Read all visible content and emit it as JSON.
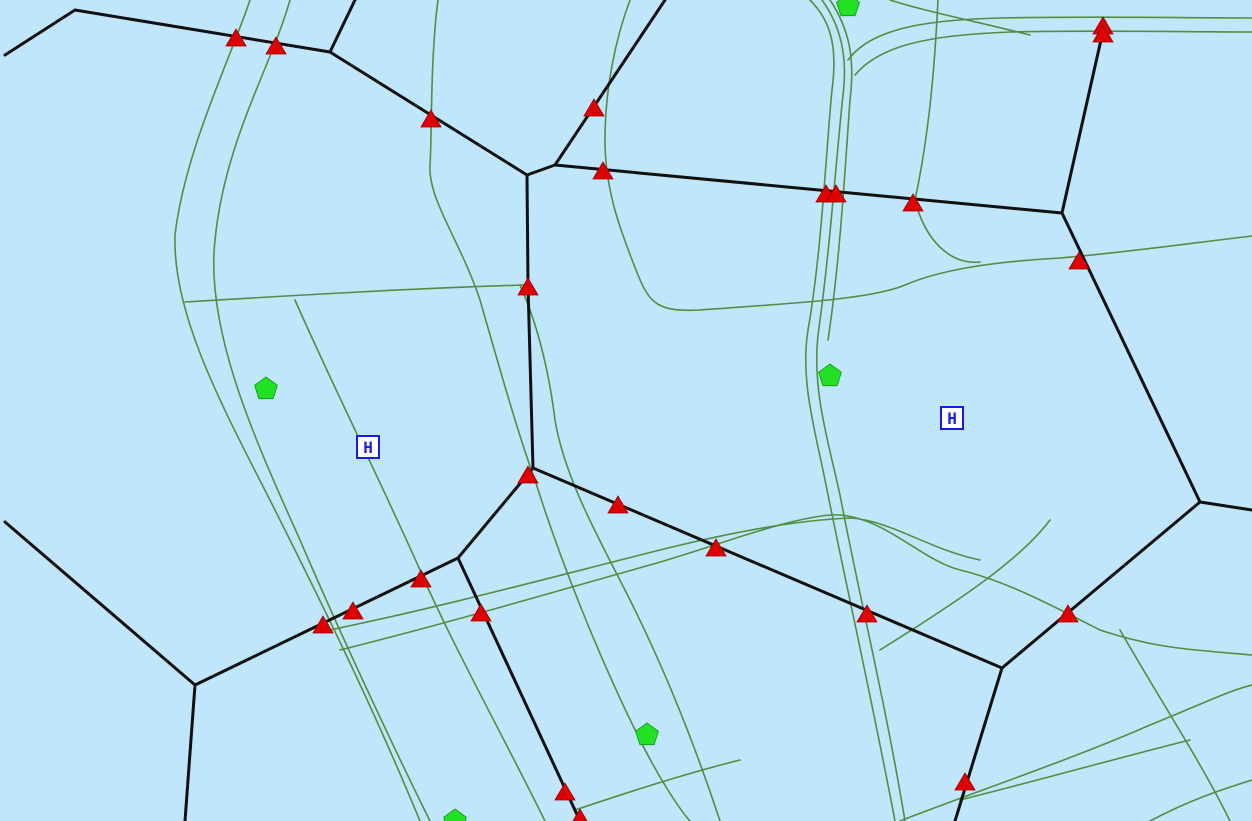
{
  "map": {
    "colors": {
      "background": "#bfe6fb",
      "road": "#4f8f3f",
      "boundary": "#111111",
      "intersection_marker": "#e00000",
      "facility_marker": "#22e122",
      "hospital_marker": "#1a1aff"
    },
    "icons": {
      "intersection": "red-triangle-icon",
      "facility": "green-pentagon-icon",
      "hospital": "hospital-h-icon"
    },
    "hospital_label": "H"
  }
}
